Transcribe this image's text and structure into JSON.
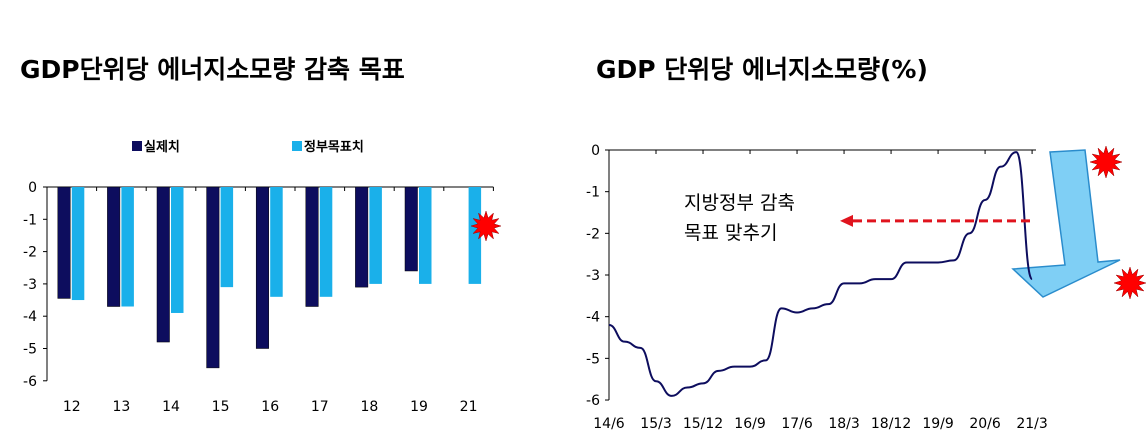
{
  "chart_data": [
    {
      "type": "bar",
      "title": "GDP단위당 에너지소모량 감축 목표",
      "categories": [
        "12",
        "13",
        "14",
        "15",
        "16",
        "17",
        "18",
        "19",
        "21"
      ],
      "series": [
        {
          "name": "실제치",
          "color": "#0d0d5e",
          "values": [
            -3.45,
            -3.7,
            -4.8,
            -5.6,
            -5.0,
            -3.7,
            -3.1,
            -2.6,
            null
          ]
        },
        {
          "name": "정부목표치",
          "color": "#1ab0ea",
          "values": [
            -3.5,
            -3.7,
            -3.9,
            -3.1,
            -3.4,
            -3.4,
            -3.0,
            -3.0,
            -3.0
          ]
        }
      ],
      "ylim": [
        -6,
        0
      ],
      "yticks": [
        "0",
        "-1",
        "-2",
        "-3",
        "-4",
        "-5",
        "-6"
      ],
      "grid": false,
      "legend": "top"
    },
    {
      "type": "line",
      "title": "GDP 단위당 에너지소모량(%)",
      "x": [
        "14/6",
        "14/9",
        "14/12",
        "15/3",
        "15/6",
        "15/9",
        "15/12",
        "16/3",
        "16/6",
        "16/9",
        "16/12",
        "17/3",
        "17/6",
        "17/9",
        "17/12",
        "18/3",
        "18/6",
        "18/9",
        "18/12",
        "19/3",
        "19/6",
        "19/9",
        "19/12",
        "20/3",
        "20/6",
        "20/9",
        "20/12",
        "21/3"
      ],
      "values": [
        -4.2,
        -4.6,
        -4.75,
        -5.55,
        -5.9,
        -5.7,
        -5.6,
        -5.3,
        -5.2,
        -5.2,
        -5.05,
        -3.8,
        -3.9,
        -3.8,
        -3.7,
        -3.2,
        -3.2,
        -3.1,
        -3.1,
        -2.7,
        -2.7,
        -2.7,
        -2.65,
        -2.0,
        -1.2,
        -0.4,
        -0.05,
        -3.1
      ],
      "xticks": [
        "14/6",
        "15/3",
        "15/12",
        "16/9",
        "17/6",
        "18/3",
        "18/12",
        "19/9",
        "20/6",
        "21/3"
      ],
      "ylim": [
        -6,
        0
      ],
      "yticks": [
        "0",
        "-1",
        "-2",
        "-3",
        "-4",
        "-5",
        "-6"
      ],
      "grid": false,
      "color": "#0d0d5e",
      "annotation": {
        "line1": "지방정부 감축",
        "line2": "목표 맞추기",
        "arrow_level": -1.7,
        "arrow_color": "#e0141e"
      }
    }
  ]
}
